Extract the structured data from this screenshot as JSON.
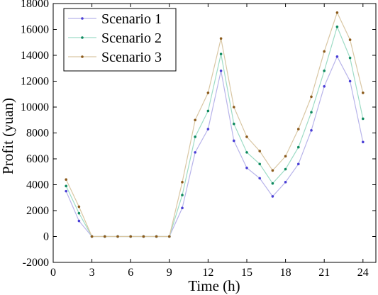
{
  "chart_data": {
    "type": "line",
    "xlabel": "Time (h)",
    "ylabel": "Profit (yuan)",
    "xlim": [
      0,
      25
    ],
    "ylim": [
      -2000,
      18000
    ],
    "x_ticks": [
      0,
      3,
      6,
      9,
      12,
      15,
      18,
      21,
      24
    ],
    "y_ticks": [
      -2000,
      0,
      2000,
      4000,
      6000,
      8000,
      10000,
      12000,
      14000,
      16000,
      18000
    ],
    "grid": false,
    "legend_position": "top-left",
    "x": [
      1,
      2,
      3,
      4,
      5,
      6,
      7,
      8,
      9,
      10,
      11,
      12,
      13,
      14,
      15,
      16,
      17,
      18,
      19,
      20,
      21,
      22,
      23,
      24
    ],
    "series": [
      {
        "name": "Scenario 1",
        "color": "#4a3fd6",
        "line_color": "#b8b4ea",
        "values": [
          3500,
          1200,
          0,
          0,
          0,
          0,
          0,
          0,
          0,
          2200,
          6500,
          8300,
          12800,
          7400,
          5300,
          4500,
          3100,
          4200,
          5600,
          8200,
          11600,
          13900,
          12000,
          7300
        ]
      },
      {
        "name": "Scenario 2",
        "color": "#0f8a5f",
        "line_color": "#9edcc6",
        "values": [
          3900,
          1800,
          0,
          0,
          0,
          0,
          0,
          0,
          0,
          3200,
          7700,
          9700,
          14100,
          8700,
          6500,
          5600,
          4100,
          5200,
          6900,
          9600,
          12800,
          16200,
          13800,
          9100
        ]
      },
      {
        "name": "Scenario 3",
        "color": "#8b5a1b",
        "line_color": "#d9c7a4",
        "values": [
          4400,
          2300,
          0,
          0,
          0,
          0,
          0,
          0,
          0,
          4200,
          9000,
          11100,
          15300,
          10000,
          7700,
          6600,
          5100,
          6200,
          8300,
          10800,
          14300,
          17300,
          15200,
          11100
        ]
      }
    ]
  }
}
